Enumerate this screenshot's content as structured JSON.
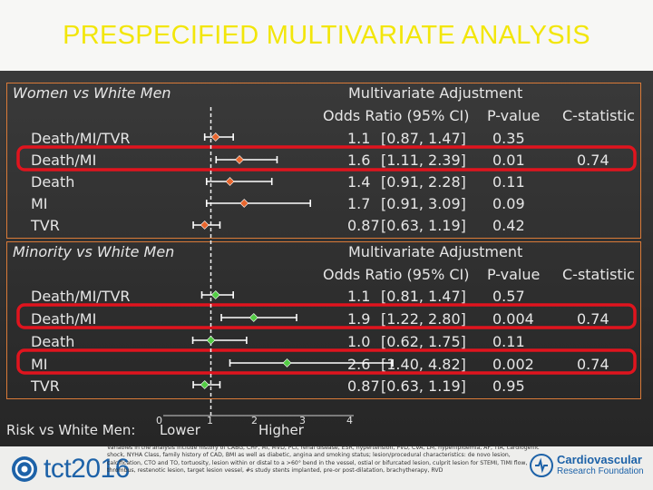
{
  "title": "PRESPECIFIED MULTIVARIATE ANALYSIS",
  "colors": {
    "title": "#f2e60a",
    "panel_border": "#d97a38",
    "highlight": "#e0141e",
    "women_marker": "#e8662e",
    "minority_marker": "#52cc44",
    "text": "#e6e6e6",
    "brand_blue": "#1d62a8"
  },
  "chart_data": {
    "type": "forest",
    "reference_line": 1,
    "x_ticks": [
      "0",
      "1",
      "2",
      "3",
      "4"
    ],
    "axis_label": "Risk vs White Men:",
    "lower_label": "Lower",
    "higher_label": "Higher",
    "panels": [
      {
        "label": "Women vs White Men",
        "adjust_header": "Multivariate Adjustment",
        "or_header": "Odds Ratio (95% CI)",
        "p_header": "P-value",
        "c_header": "C-statistic",
        "rows": [
          {
            "outcome": "Death/MI/TVR",
            "or": "1.1",
            "ci": "[0.87, 1.47]",
            "p": "0.35",
            "c": "",
            "or_val": 1.1,
            "lo": 0.87,
            "hi": 1.47,
            "highlight": false
          },
          {
            "outcome": "Death/MI",
            "or": "1.6",
            "ci": "[1.11, 2.39]",
            "p": "0.01",
            "c": "0.74",
            "or_val": 1.6,
            "lo": 1.11,
            "hi": 2.39,
            "highlight": true
          },
          {
            "outcome": "Death",
            "or": "1.4",
            "ci": "[0.91, 2.28]",
            "p": "0.11",
            "c": "",
            "or_val": 1.4,
            "lo": 0.91,
            "hi": 2.28,
            "highlight": false
          },
          {
            "outcome": "MI",
            "or": "1.7",
            "ci": "[0.91, 3.09]",
            "p": "0.09",
            "c": "",
            "or_val": 1.7,
            "lo": 0.91,
            "hi": 3.09,
            "highlight": false
          },
          {
            "outcome": "TVR",
            "or": "0.87",
            "ci": "[0.63, 1.19]",
            "p": "0.42",
            "c": "",
            "or_val": 0.87,
            "lo": 0.63,
            "hi": 1.19,
            "highlight": false
          }
        ]
      },
      {
        "label": "Minority vs White Men",
        "adjust_header": "Multivariate Adjustment",
        "or_header": "Odds Ratio (95% CI)",
        "p_header": "P-value",
        "c_header": "C-statistic",
        "rows": [
          {
            "outcome": "Death/MI/TVR",
            "or": "1.1",
            "ci": "[0.81, 1.47]",
            "p": "0.57",
            "c": "",
            "or_val": 1.1,
            "lo": 0.81,
            "hi": 1.47,
            "highlight": false
          },
          {
            "outcome": "Death/MI",
            "or": "1.9",
            "ci": "[1.22, 2.80]",
            "p": "0.004",
            "c": "0.74",
            "or_val": 1.9,
            "lo": 1.22,
            "hi": 2.8,
            "highlight": true
          },
          {
            "outcome": "Death",
            "or": "1.0",
            "ci": "[0.62, 1.75]",
            "p": "0.11",
            "c": "",
            "or_val": 1.0,
            "lo": 0.62,
            "hi": 1.75,
            "highlight": false
          },
          {
            "outcome": "MI",
            "or": "2.6",
            "ci": "[1.40, 4.82]",
            "p": "0.002",
            "c": "0.74",
            "or_val": 2.6,
            "lo": 1.4,
            "hi": 4.82,
            "highlight": true
          },
          {
            "outcome": "TVR",
            "or": "0.87",
            "ci": "[0.63, 1.19]",
            "p": "0.95",
            "c": "",
            "or_val": 0.87,
            "lo": 0.63,
            "hi": 1.19,
            "highlight": false
          }
        ]
      }
    ]
  },
  "footer": {
    "logo_left": "tct2016",
    "logo_right_line1": "Cardiovascular",
    "logo_right_line2": "Research Foundation",
    "notes": "Variables in the analysis include history of CABG, CHF, MI, MVD, PCI, renal disease, ESR, hypertension, PVD, CVA, LM, hyperlipidemia, AF, TIA, cardiogenic shock, NYHA Class, family history of CAD, BMI as well as diabetic, angina and smoking status; lesion/procedural characteristics: de novo lesion, calcification, CTO and TO, tortuosity, lesion within or distal to a >60° bend in the vessel, ostial or bifurcated lesion, culprit lesion for STEMI, TIMI flow, thrombus, restenotic lesion, target lesion vessel, #s study stents implanted, pre-or post-dilatation, brachytherapy, RVD"
  }
}
